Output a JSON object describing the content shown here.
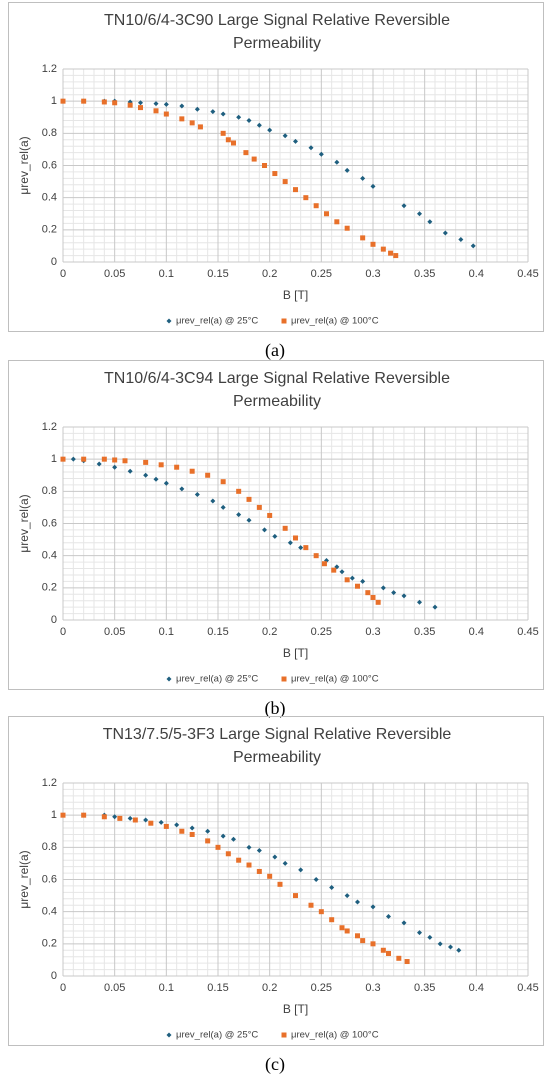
{
  "chart_data": [
    {
      "type": "scatter",
      "title": "TN10/6/4-3C90 Large Signal Relative Reversible Permeability",
      "x_label": "B [T]",
      "y_label": "μrev_rel(a)",
      "xlim": [
        0,
        0.45
      ],
      "ylim": [
        0,
        1.2
      ],
      "xticks": [
        0,
        0.05,
        0.1,
        0.15,
        0.2,
        0.25,
        0.3,
        0.35,
        0.4,
        0.45
      ],
      "yticks": [
        0,
        0.2,
        0.4,
        0.6,
        0.8,
        1,
        1.2
      ],
      "grid": true,
      "minor_grid": true,
      "legend": "bottom",
      "series": [
        {
          "name": "μrev_rel(a) @ 25°C",
          "color": "#1f5f7f",
          "marker": "diamond",
          "x": [
            0,
            0.02,
            0.04,
            0.05,
            0.065,
            0.075,
            0.09,
            0.1,
            0.115,
            0.13,
            0.145,
            0.155,
            0.17,
            0.18,
            0.19,
            0.2,
            0.215,
            0.225,
            0.24,
            0.25,
            0.265,
            0.275,
            0.29,
            0.3,
            0.33,
            0.345,
            0.355,
            0.37,
            0.385,
            0.397
          ],
          "values": [
            1,
            1,
            1,
            1,
            0.995,
            0.99,
            0.985,
            0.98,
            0.97,
            0.95,
            0.935,
            0.92,
            0.9,
            0.88,
            0.85,
            0.82,
            0.785,
            0.75,
            0.71,
            0.67,
            0.62,
            0.57,
            0.52,
            0.47,
            0.35,
            0.3,
            0.25,
            0.18,
            0.14,
            0.1
          ]
        },
        {
          "name": "μrev_rel(a) @ 100°C",
          "color": "#e8702a",
          "marker": "square",
          "x": [
            0,
            0.02,
            0.04,
            0.05,
            0.065,
            0.075,
            0.09,
            0.1,
            0.115,
            0.125,
            0.133,
            0.155,
            0.16,
            0.165,
            0.177,
            0.185,
            0.195,
            0.205,
            0.215,
            0.225,
            0.235,
            0.245,
            0.255,
            0.265,
            0.275,
            0.29,
            0.3,
            0.31,
            0.317,
            0.322
          ],
          "values": [
            1,
            1,
            0.995,
            0.99,
            0.975,
            0.96,
            0.94,
            0.92,
            0.89,
            0.865,
            0.84,
            0.8,
            0.76,
            0.74,
            0.68,
            0.64,
            0.6,
            0.55,
            0.5,
            0.45,
            0.4,
            0.35,
            0.3,
            0.25,
            0.21,
            0.15,
            0.11,
            0.08,
            0.055,
            0.04
          ]
        }
      ]
    },
    {
      "type": "scatter",
      "title": "TN10/6/4-3C94 Large Signal Relative Reversible Permeability",
      "x_label": "B [T]",
      "y_label": "μrev_rel(a)",
      "xlim": [
        0,
        0.45
      ],
      "ylim": [
        0,
        1.2
      ],
      "xticks": [
        0,
        0.05,
        0.1,
        0.15,
        0.2,
        0.25,
        0.3,
        0.35,
        0.4,
        0.45
      ],
      "yticks": [
        0,
        0.2,
        0.4,
        0.6,
        0.8,
        1,
        1.2
      ],
      "grid": true,
      "minor_grid": true,
      "legend": "bottom",
      "series": [
        {
          "name": "μrev_rel(a) @ 25°C",
          "color": "#1f5f7f",
          "marker": "diamond",
          "x": [
            0,
            0.01,
            0.02,
            0.035,
            0.05,
            0.065,
            0.08,
            0.09,
            0.1,
            0.115,
            0.13,
            0.145,
            0.155,
            0.17,
            0.18,
            0.195,
            0.205,
            0.22,
            0.23,
            0.245,
            0.255,
            0.265,
            0.27,
            0.28,
            0.29,
            0.31,
            0.32,
            0.33,
            0.345,
            0.36
          ],
          "values": [
            1,
            1,
            0.99,
            0.97,
            0.95,
            0.925,
            0.9,
            0.875,
            0.85,
            0.815,
            0.78,
            0.74,
            0.7,
            0.655,
            0.62,
            0.56,
            0.52,
            0.48,
            0.45,
            0.4,
            0.37,
            0.33,
            0.3,
            0.26,
            0.24,
            0.2,
            0.17,
            0.15,
            0.11,
            0.08
          ]
        },
        {
          "name": "μrev_rel(a) @ 100°C",
          "color": "#e8702a",
          "marker": "square",
          "x": [
            0,
            0.02,
            0.04,
            0.05,
            0.06,
            0.08,
            0.095,
            0.11,
            0.125,
            0.14,
            0.155,
            0.17,
            0.18,
            0.19,
            0.2,
            0.215,
            0.225,
            0.235,
            0.245,
            0.253,
            0.262,
            0.275,
            0.285,
            0.295,
            0.3,
            0.305
          ],
          "values": [
            1,
            1,
            1,
            0.995,
            0.99,
            0.98,
            0.965,
            0.95,
            0.925,
            0.9,
            0.86,
            0.8,
            0.75,
            0.7,
            0.65,
            0.57,
            0.51,
            0.45,
            0.4,
            0.35,
            0.31,
            0.25,
            0.21,
            0.17,
            0.14,
            0.11
          ]
        }
      ]
    },
    {
      "type": "scatter",
      "title": "TN13/7.5/5-3F3 Large Signal Relative Reversible Permeability",
      "x_label": "B [T]",
      "y_label": "μrev_rel(a)",
      "xlim": [
        0,
        0.45
      ],
      "ylim": [
        0,
        1.2
      ],
      "xticks": [
        0,
        0.05,
        0.1,
        0.15,
        0.2,
        0.25,
        0.3,
        0.35,
        0.4,
        0.45
      ],
      "yticks": [
        0,
        0.2,
        0.4,
        0.6,
        0.8,
        1,
        1.2
      ],
      "grid": true,
      "minor_grid": true,
      "legend": "bottom",
      "series": [
        {
          "name": "μrev_rel(a) @ 25°C",
          "color": "#1f5f7f",
          "marker": "diamond",
          "x": [
            0,
            0.02,
            0.04,
            0.05,
            0.065,
            0.08,
            0.095,
            0.11,
            0.125,
            0.14,
            0.155,
            0.165,
            0.18,
            0.19,
            0.205,
            0.215,
            0.23,
            0.245,
            0.26,
            0.275,
            0.285,
            0.3,
            0.315,
            0.33,
            0.345,
            0.355,
            0.365,
            0.375,
            0.383
          ],
          "values": [
            1,
            1,
            1,
            0.99,
            0.98,
            0.97,
            0.955,
            0.94,
            0.92,
            0.9,
            0.87,
            0.85,
            0.8,
            0.78,
            0.74,
            0.7,
            0.66,
            0.6,
            0.55,
            0.5,
            0.46,
            0.43,
            0.37,
            0.33,
            0.27,
            0.24,
            0.2,
            0.18,
            0.16
          ]
        },
        {
          "name": "μrev_rel(a) @ 100°C",
          "color": "#e8702a",
          "marker": "square",
          "x": [
            0,
            0.02,
            0.04,
            0.055,
            0.07,
            0.085,
            0.1,
            0.115,
            0.125,
            0.14,
            0.15,
            0.16,
            0.17,
            0.18,
            0.19,
            0.2,
            0.21,
            0.225,
            0.24,
            0.25,
            0.26,
            0.27,
            0.275,
            0.285,
            0.29,
            0.3,
            0.31,
            0.315,
            0.325,
            0.333
          ],
          "values": [
            1,
            1,
            0.99,
            0.98,
            0.97,
            0.95,
            0.93,
            0.9,
            0.88,
            0.84,
            0.8,
            0.76,
            0.72,
            0.69,
            0.65,
            0.62,
            0.57,
            0.5,
            0.44,
            0.4,
            0.35,
            0.3,
            0.28,
            0.25,
            0.22,
            0.2,
            0.16,
            0.14,
            0.11,
            0.09
          ]
        }
      ]
    }
  ],
  "captions": [
    "(a)",
    "(b)",
    "(c)"
  ]
}
